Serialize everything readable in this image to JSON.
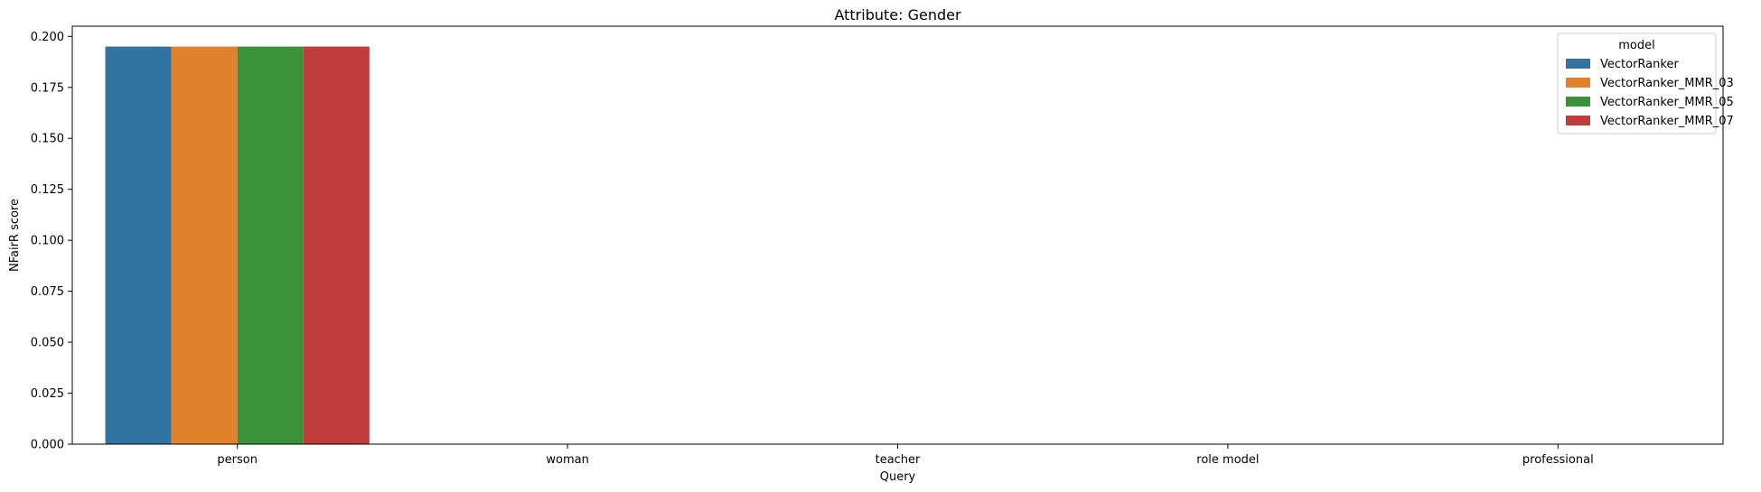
{
  "chart_data": {
    "type": "bar",
    "title": "Attribute: Gender",
    "xlabel": "Query",
    "ylabel": "NFairR score",
    "categories": [
      "person",
      "woman",
      "teacher",
      "role model",
      "professional"
    ],
    "series": [
      {
        "name": "VectorRanker",
        "color": "#3274a1",
        "values": [
          0.195,
          0,
          0,
          0,
          0
        ]
      },
      {
        "name": "VectorRanker_MMR_03",
        "color": "#e1812c",
        "values": [
          0.195,
          0,
          0,
          0,
          0
        ]
      },
      {
        "name": "VectorRanker_MMR_05",
        "color": "#3a923a",
        "values": [
          0.195,
          0,
          0,
          0,
          0
        ]
      },
      {
        "name": "VectorRanker_MMR_07",
        "color": "#c03d3e",
        "values": [
          0.195,
          0,
          0,
          0,
          0
        ]
      }
    ],
    "ylim": [
      0,
      0.205
    ],
    "yticks": [
      "0.000",
      "0.025",
      "0.050",
      "0.075",
      "0.100",
      "0.125",
      "0.150",
      "0.175",
      "0.200"
    ],
    "legend": {
      "title": "model",
      "placement": "top-right"
    },
    "grid": false
  }
}
